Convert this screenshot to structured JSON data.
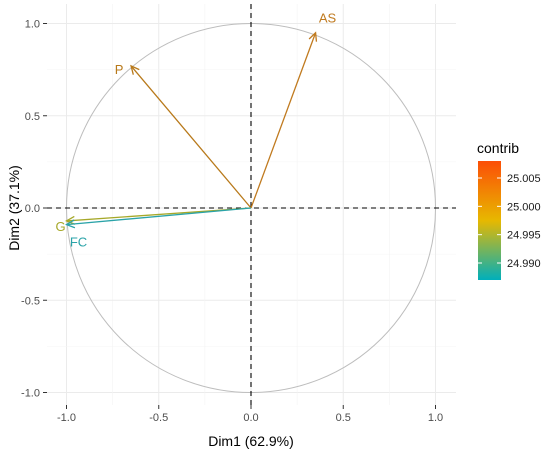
{
  "chart_data": {
    "type": "scatter",
    "subtype": "pca-variable-correlation-circle",
    "xlabel": "Dim1 (62.9%)",
    "ylabel": "Dim2 (37.1%)",
    "xlim": [
      -1.0,
      1.0
    ],
    "ylim": [
      -1.0,
      1.0
    ],
    "x_ticks": [
      -1.0,
      -0.5,
      0.0,
      0.5,
      1.0
    ],
    "x_tick_labels": [
      "-1.0",
      "-0.5",
      "0.0",
      "0.5",
      "1.0"
    ],
    "y_ticks": [
      -1.0,
      -0.5,
      0.0,
      0.5,
      1.0
    ],
    "y_tick_labels": [
      "-1.0",
      "-0.5",
      "0.0",
      "0.5",
      "1.0"
    ],
    "grid": true,
    "unit_circle": true,
    "reference_lines": "dashed at x=0 and y=0",
    "variables": [
      {
        "label": "AS",
        "x": 0.35,
        "y": 0.95,
        "contrib": 25.008,
        "color": "#c07a1f"
      },
      {
        "label": "P",
        "x": -0.65,
        "y": 0.77,
        "contrib": 25.001,
        "color": "#b8791a"
      },
      {
        "label": "G",
        "x": -1.0,
        "y": -0.07,
        "contrib": 24.998,
        "color": "#a6a829"
      },
      {
        "label": "FC",
        "x": -1.0,
        "y": -0.09,
        "contrib": 24.989,
        "color": "#2aa3a8"
      }
    ],
    "legend": {
      "title": "contrib",
      "position": "right",
      "range": [
        24.987,
        25.008
      ],
      "ticks": [
        25.005,
        25.0,
        24.995,
        24.99
      ],
      "tick_labels": [
        "25.005",
        "25.000",
        "24.995",
        "24.990"
      ],
      "gradient_colors": [
        "#00afbb",
        "#e7b800",
        "#fc4e07"
      ]
    }
  }
}
